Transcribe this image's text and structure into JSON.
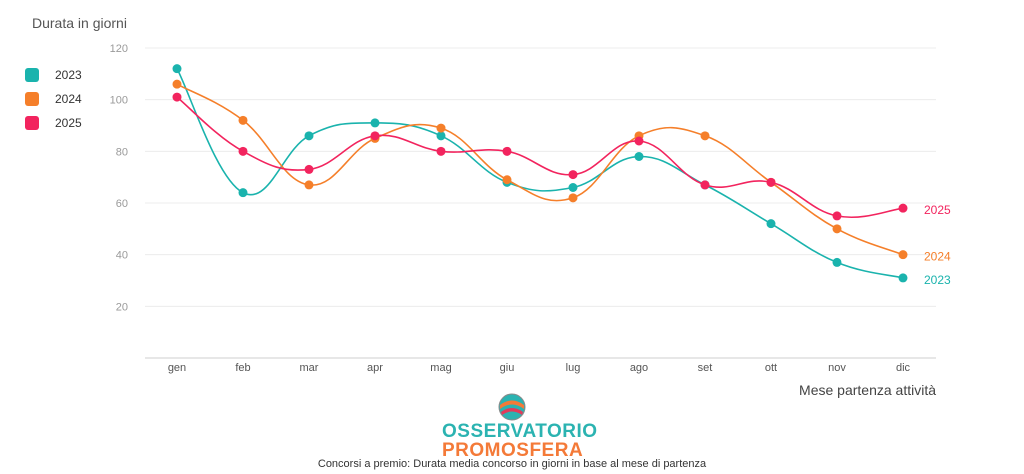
{
  "chart_data": {
    "type": "line",
    "ylabel": "Durata in giorni",
    "xlabel": "Mese partenza attività",
    "ylim": [
      0,
      120
    ],
    "yticks": [
      20,
      40,
      60,
      80,
      100,
      120
    ],
    "categories": [
      "gen",
      "feb",
      "mar",
      "apr",
      "mag",
      "giu",
      "lug",
      "ago",
      "set",
      "ott",
      "nov",
      "dic"
    ],
    "series": [
      {
        "name": "2023",
        "color": "#1ab3ad",
        "values": [
          112,
          64,
          86,
          91,
          86,
          68,
          66,
          78,
          67,
          52,
          37,
          31
        ]
      },
      {
        "name": "2024",
        "color": "#f57f2a",
        "values": [
          106,
          92,
          67,
          85,
          89,
          69,
          62,
          86,
          86,
          68,
          50,
          40
        ]
      },
      {
        "name": "2025",
        "color": "#f2245e",
        "values": [
          101,
          80,
          73,
          86,
          80,
          80,
          71,
          84,
          67,
          68,
          55,
          58
        ]
      }
    ],
    "legend": "left",
    "grid": true
  },
  "logo": {
    "top": "OSSERVATORIO",
    "bottom": "PROMOSFERA"
  },
  "caption": "Concorsi a premio: Durata media concorso in giorni in base al mese di partenza"
}
